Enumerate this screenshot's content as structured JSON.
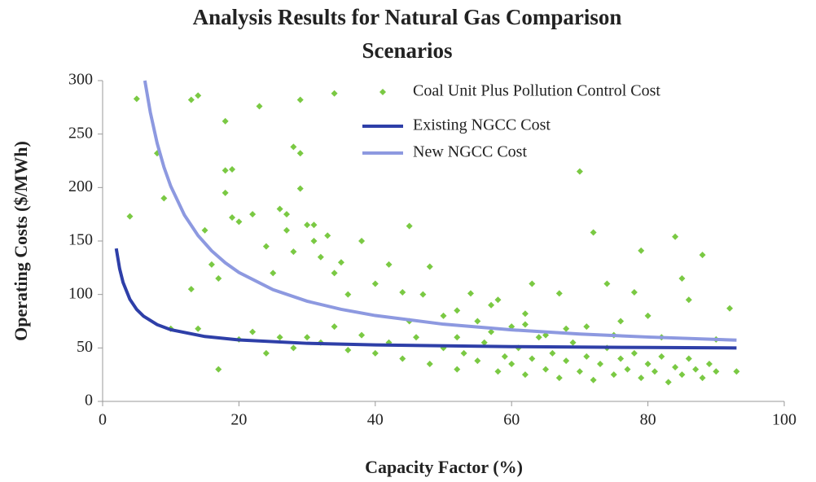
{
  "chart_data": {
    "type": "scatter",
    "title": [
      "Analysis Results for Natural Gas Comparison",
      "Scenarios"
    ],
    "xlabel": "Capacity Factor (%)",
    "ylabel": "Operating Costs ($/MWh)",
    "xlim": [
      0,
      100
    ],
    "xticks": [
      0,
      20,
      40,
      60,
      80,
      100
    ],
    "ylim": [
      0,
      300
    ],
    "yticks": [
      0,
      50,
      100,
      150,
      200,
      250,
      300
    ],
    "grid": false,
    "legend": "upper right",
    "series": [
      {
        "name": "Coal Unit Plus Pollution Control Cost",
        "color": "#7ac943",
        "kind": "scatter",
        "x": [
          4,
          5,
          8,
          9,
          13,
          14,
          13,
          14,
          15,
          16,
          17,
          17,
          18,
          18,
          19,
          18,
          19,
          20,
          22,
          23,
          24,
          25,
          26,
          27,
          27,
          28,
          28,
          29,
          29,
          29,
          30,
          31,
          31,
          32,
          33,
          34,
          34,
          35,
          36,
          38,
          40,
          42,
          44,
          45,
          47,
          48,
          50,
          52,
          54,
          55,
          57,
          58,
          60,
          62,
          63,
          65,
          67,
          70,
          71,
          72,
          74,
          76,
          78,
          79,
          80,
          82,
          84,
          85,
          86,
          88,
          90,
          92,
          93,
          10,
          20,
          22,
          24,
          26,
          28,
          30,
          32,
          34,
          36,
          38,
          40,
          42,
          44,
          46,
          48,
          50,
          52,
          53,
          55,
          56,
          58,
          59,
          60,
          61,
          62,
          63,
          64,
          65,
          66,
          67,
          68,
          69,
          70,
          71,
          72,
          73,
          74,
          75,
          76,
          77,
          78,
          79,
          80,
          81,
          82,
          83,
          84,
          85,
          86,
          87,
          88,
          89,
          90,
          57,
          62,
          68,
          75,
          45,
          52
        ],
        "values": [
          173,
          283,
          232,
          190,
          282,
          286,
          105,
          68,
          160,
          128,
          30,
          115,
          262,
          216,
          217,
          195,
          172,
          168,
          175,
          276,
          145,
          120,
          180,
          175,
          160,
          140,
          238,
          232,
          199,
          282,
          165,
          165,
          150,
          135,
          155,
          288,
          120,
          130,
          100,
          150,
          110,
          128,
          102,
          164,
          100,
          126,
          80,
          85,
          101,
          75,
          90,
          95,
          70,
          82,
          110,
          62,
          101,
          215,
          70,
          158,
          110,
          75,
          102,
          141,
          80,
          60,
          154,
          115,
          95,
          137,
          58,
          87,
          28,
          68,
          58,
          65,
          45,
          60,
          50,
          60,
          55,
          70,
          48,
          62,
          45,
          55,
          40,
          60,
          35,
          50,
          30,
          45,
          38,
          55,
          28,
          42,
          35,
          50,
          25,
          40,
          60,
          30,
          45,
          22,
          38,
          55,
          28,
          42,
          20,
          35,
          50,
          25,
          40,
          30,
          45,
          22,
          35,
          28,
          42,
          18,
          32,
          25,
          40,
          30,
          22,
          35,
          28,
          65,
          72,
          68,
          62,
          75,
          60
        ]
      },
      {
        "name": "Existing NGCC Cost",
        "color": "#2e3fa8",
        "kind": "line",
        "x": [
          2,
          2.5,
          3,
          4,
          5,
          6,
          8,
          10,
          15,
          20,
          30,
          40,
          60,
          80,
          93
        ],
        "values": [
          143,
          124,
          111.3,
          95.5,
          86,
          79.7,
          71.8,
          67,
          60.7,
          57.5,
          54.3,
          52.8,
          51.2,
          50.4,
          50.0
        ]
      },
      {
        "name": "New NGCC Cost",
        "color": "#8d99e0",
        "kind": "line",
        "x": [
          6.2,
          7,
          8,
          9,
          10,
          12,
          14,
          16,
          18,
          20,
          25,
          30,
          35,
          40,
          50,
          60,
          70,
          80,
          93
        ],
        "values": [
          300,
          270.3,
          241.5,
          219.1,
          201.2,
          174.3,
          155.1,
          140.8,
          129.6,
          120.6,
          104.5,
          93.7,
          86.1,
          80.3,
          72.2,
          66.9,
          63.0,
          60.2,
          57.3
        ]
      }
    ]
  }
}
